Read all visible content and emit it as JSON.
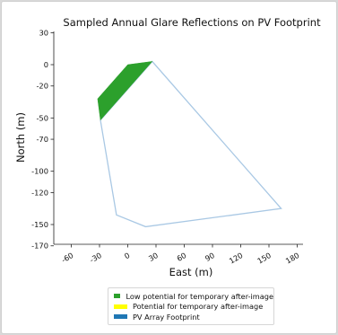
{
  "chart_data": {
    "type": "area",
    "title": "Sampled Annual Glare Reflections on PV Footprint",
    "xlabel": "East (m)",
    "ylabel": "North (m)",
    "xlim": [
      -80,
      196
    ],
    "ylim": [
      -178,
      38
    ],
    "xticks": [
      -60,
      -30,
      0,
      30,
      60,
      90,
      120,
      150,
      180
    ],
    "xtick_labels": [
      "-60",
      "-30",
      "0",
      "30",
      "60",
      "90",
      "120",
      "150",
      "180"
    ],
    "yticks": [
      30,
      0,
      -20,
      -50,
      -70,
      -100,
      -120,
      -150,
      -170
    ],
    "ytick_labels": [
      "30",
      "0",
      "-20",
      "-50",
      "-70",
      "-100",
      "-120",
      "-150",
      "-170"
    ],
    "grid": false,
    "legend_position": "bottom-center",
    "series": [
      {
        "name": "Low potential for temporary after-image",
        "color": "#2ca02c",
        "x": [
          -32,
          0,
          26,
          -29
        ],
        "y": [
          -32,
          0,
          3,
          -52
        ]
      },
      {
        "name": "Potential for temporary after-image",
        "color": "#ffff00",
        "x": [],
        "y": []
      },
      {
        "name": "PV Array Footprint",
        "color": "#1f77b4",
        "outline_color": "#a9c8e4",
        "x": [
          -29,
          26,
          163,
          19,
          -12,
          -29
        ],
        "y": [
          -52,
          3,
          -135,
          -152,
          -141,
          -52
        ]
      }
    ]
  }
}
